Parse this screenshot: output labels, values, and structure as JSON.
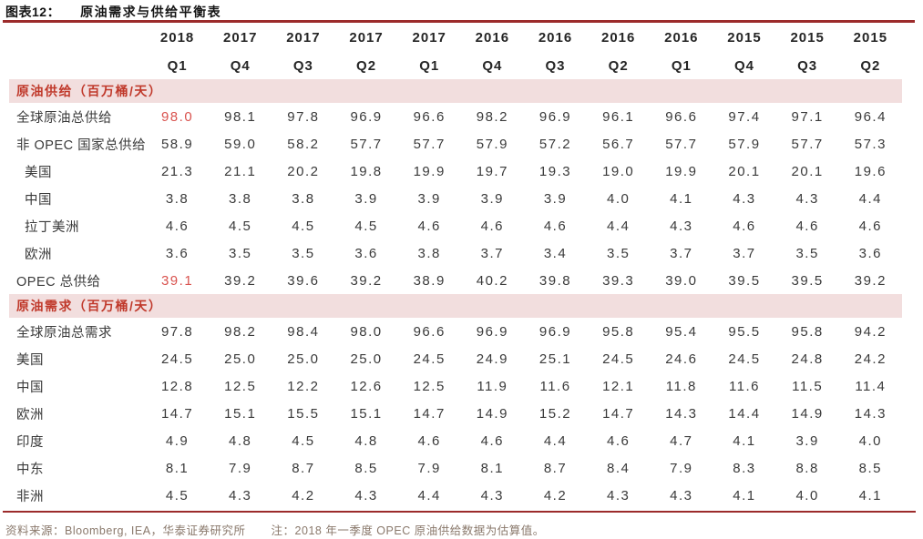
{
  "title": {
    "prefix": "图表12：",
    "text": "原油需求与供给平衡表"
  },
  "columns": [
    {
      "year": "2018",
      "quarter": "Q1"
    },
    {
      "year": "2017",
      "quarter": "Q4"
    },
    {
      "year": "2017",
      "quarter": "Q3"
    },
    {
      "year": "2017",
      "quarter": "Q2"
    },
    {
      "year": "2017",
      "quarter": "Q1"
    },
    {
      "year": "2016",
      "quarter": "Q4"
    },
    {
      "year": "2016",
      "quarter": "Q3"
    },
    {
      "year": "2016",
      "quarter": "Q2"
    },
    {
      "year": "2016",
      "quarter": "Q1"
    },
    {
      "year": "2015",
      "quarter": "Q4"
    },
    {
      "year": "2015",
      "quarter": "Q3"
    },
    {
      "year": "2015",
      "quarter": "Q2"
    }
  ],
  "sections": [
    {
      "header": "原油供给（百万桶/天）",
      "rows": [
        {
          "label": "全球原油总供给",
          "indent": false,
          "first_red": true,
          "values": [
            "98.0",
            "98.1",
            "97.8",
            "96.9",
            "96.6",
            "98.2",
            "96.9",
            "96.1",
            "96.6",
            "97.4",
            "97.1",
            "96.4"
          ]
        },
        {
          "label": "非 OPEC 国家总供给",
          "indent": false,
          "first_red": false,
          "values": [
            "58.9",
            "59.0",
            "58.2",
            "57.7",
            "57.7",
            "57.9",
            "57.2",
            "56.7",
            "57.7",
            "57.9",
            "57.7",
            "57.3"
          ]
        },
        {
          "label": "美国",
          "indent": true,
          "first_red": false,
          "values": [
            "21.3",
            "21.1",
            "20.2",
            "19.8",
            "19.9",
            "19.7",
            "19.3",
            "19.0",
            "19.9",
            "20.1",
            "20.1",
            "19.6"
          ]
        },
        {
          "label": "中国",
          "indent": true,
          "first_red": false,
          "values": [
            "3.8",
            "3.8",
            "3.8",
            "3.9",
            "3.9",
            "3.9",
            "3.9",
            "4.0",
            "4.1",
            "4.3",
            "4.3",
            "4.4"
          ]
        },
        {
          "label": "拉丁美洲",
          "indent": true,
          "first_red": false,
          "values": [
            "4.6",
            "4.5",
            "4.5",
            "4.5",
            "4.6",
            "4.6",
            "4.6",
            "4.4",
            "4.3",
            "4.6",
            "4.6",
            "4.6"
          ]
        },
        {
          "label": "欧洲",
          "indent": true,
          "first_red": false,
          "values": [
            "3.6",
            "3.5",
            "3.5",
            "3.6",
            "3.8",
            "3.7",
            "3.4",
            "3.5",
            "3.7",
            "3.7",
            "3.5",
            "3.6"
          ]
        },
        {
          "label": "OPEC 总供给",
          "indent": false,
          "first_red": true,
          "values": [
            "39.1",
            "39.2",
            "39.6",
            "39.2",
            "38.9",
            "40.2",
            "39.8",
            "39.3",
            "39.0",
            "39.5",
            "39.5",
            "39.2"
          ]
        }
      ]
    },
    {
      "header": "原油需求（百万桶/天）",
      "rows": [
        {
          "label": "全球原油总需求",
          "indent": false,
          "first_red": false,
          "values": [
            "97.8",
            "98.2",
            "98.4",
            "98.0",
            "96.6",
            "96.9",
            "96.9",
            "95.8",
            "95.4",
            "95.5",
            "95.8",
            "94.2"
          ]
        },
        {
          "label": "美国",
          "indent": false,
          "first_red": false,
          "values": [
            "24.5",
            "25.0",
            "25.0",
            "25.0",
            "24.5",
            "24.9",
            "25.1",
            "24.5",
            "24.6",
            "24.5",
            "24.8",
            "24.2"
          ]
        },
        {
          "label": "中国",
          "indent": false,
          "first_red": false,
          "values": [
            "12.8",
            "12.5",
            "12.2",
            "12.6",
            "12.5",
            "11.9",
            "11.6",
            "12.1",
            "11.8",
            "11.6",
            "11.5",
            "11.4"
          ]
        },
        {
          "label": "欧洲",
          "indent": false,
          "first_red": false,
          "values": [
            "14.7",
            "15.1",
            "15.5",
            "15.1",
            "14.7",
            "14.9",
            "15.2",
            "14.7",
            "14.3",
            "14.4",
            "14.9",
            "14.3"
          ]
        },
        {
          "label": "印度",
          "indent": false,
          "first_red": false,
          "values": [
            "4.9",
            "4.8",
            "4.5",
            "4.8",
            "4.6",
            "4.6",
            "4.4",
            "4.6",
            "4.7",
            "4.1",
            "3.9",
            "4.0"
          ]
        },
        {
          "label": "中东",
          "indent": false,
          "first_red": false,
          "values": [
            "8.1",
            "7.9",
            "8.7",
            "8.5",
            "7.9",
            "8.1",
            "8.7",
            "8.4",
            "7.9",
            "8.3",
            "8.8",
            "8.5"
          ]
        },
        {
          "label": "非洲",
          "indent": false,
          "first_red": false,
          "values": [
            "4.5",
            "4.3",
            "4.2",
            "4.3",
            "4.4",
            "4.3",
            "4.2",
            "4.3",
            "4.3",
            "4.1",
            "4.0",
            "4.1"
          ]
        }
      ]
    }
  ],
  "footer": {
    "source": "资料来源：Bloomberg, IEA，华泰证券研究所",
    "note": "注：2018 年一季度 OPEC 原油供给数据为估算值。"
  },
  "colors": {
    "rule_dark_red": "#9c2b2b",
    "band_background_pink": "#f2dede",
    "band_text_red": "#c0392b",
    "highlight_value_red": "#d9534f",
    "body_text": "#3a3a3a",
    "footer_text": "#8a796c"
  }
}
